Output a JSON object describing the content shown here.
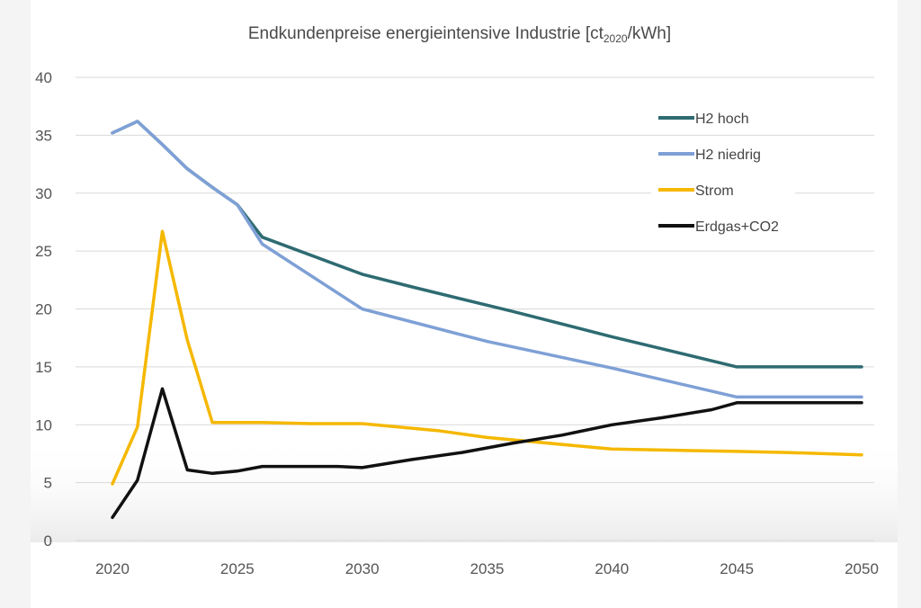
{
  "chart_data": {
    "type": "line",
    "title": {
      "main": "Endkundenpreise  energieintensive  Industrie  [ct",
      "sub": "2020",
      "end": "/kWh]"
    },
    "xlabel": "",
    "ylabel": "",
    "xlim": [
      2020,
      2050
    ],
    "ylim": [
      0,
      40
    ],
    "x_ticks": [
      "2020",
      "2025",
      "2030",
      "2035",
      "2040",
      "2045",
      "2050"
    ],
    "y_ticks": [
      "0",
      "5",
      "10",
      "15",
      "20",
      "25",
      "30",
      "35",
      "40"
    ],
    "grid": "horizontal",
    "legend_position": "top-right",
    "series": [
      {
        "name": "H2 hoch",
        "color": "#2e6b72",
        "points": [
          [
            2020,
            35.2
          ],
          [
            2021,
            36.2
          ],
          [
            2022,
            34.2
          ],
          [
            2023,
            32.1
          ],
          [
            2024,
            30.5
          ],
          [
            2025,
            29
          ],
          [
            2026,
            26.2
          ],
          [
            2030,
            23
          ],
          [
            2032,
            21.9
          ],
          [
            2036,
            19.8
          ],
          [
            2040,
            17.6
          ],
          [
            2045,
            15
          ],
          [
            2050,
            15
          ]
        ]
      },
      {
        "name": "H2 niedrig",
        "color": "#7ea0d6",
        "points": [
          [
            2020,
            35.2
          ],
          [
            2021,
            36.2
          ],
          [
            2022,
            34.2
          ],
          [
            2023,
            32.1
          ],
          [
            2024,
            30.5
          ],
          [
            2025,
            29
          ],
          [
            2026,
            25.6
          ],
          [
            2030,
            20
          ],
          [
            2035,
            17.2
          ],
          [
            2040,
            14.9
          ],
          [
            2045,
            12.4
          ],
          [
            2050,
            12.4
          ]
        ]
      },
      {
        "name": "Strom",
        "color": "#f5b800",
        "points": [
          [
            2020,
            4.9
          ],
          [
            2021,
            9.8
          ],
          [
            2022,
            26.7
          ],
          [
            2023,
            17.3
          ],
          [
            2024,
            10.2
          ],
          [
            2026,
            10.2
          ],
          [
            2028,
            10.1
          ],
          [
            2030,
            10.1
          ],
          [
            2033,
            9.5
          ],
          [
            2035,
            8.9
          ],
          [
            2040,
            7.9
          ],
          [
            2045,
            7.7
          ],
          [
            2047,
            7.6
          ],
          [
            2050,
            7.4
          ]
        ]
      },
      {
        "name": "Erdgas+CO2",
        "color": "#111111",
        "points": [
          [
            2020,
            2
          ],
          [
            2021,
            5.2
          ],
          [
            2022,
            13.1
          ],
          [
            2023,
            6.1
          ],
          [
            2024,
            5.8
          ],
          [
            2025,
            6
          ],
          [
            2026,
            6.4
          ],
          [
            2029,
            6.4
          ],
          [
            2030,
            6.3
          ],
          [
            2032,
            7
          ],
          [
            2034,
            7.6
          ],
          [
            2036,
            8.4
          ],
          [
            2038,
            9.1
          ],
          [
            2040,
            10
          ],
          [
            2042,
            10.6
          ],
          [
            2044,
            11.3
          ],
          [
            2045,
            11.9
          ],
          [
            2050,
            11.9
          ]
        ]
      }
    ]
  }
}
